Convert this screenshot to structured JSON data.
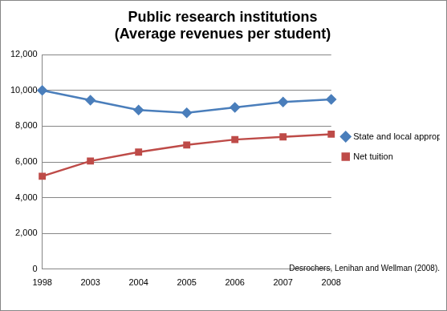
{
  "chart_data": {
    "type": "line",
    "title": "Public research institutions",
    "subtitle": "(Average revenues per student)",
    "annotations": [
      "Desrochers, Lenihan and Wellman (2008)."
    ],
    "categories": [
      "1998",
      "2003",
      "2004",
      "2005",
      "2006",
      "2007",
      "2008"
    ],
    "series": [
      {
        "name": "State and local appropriations",
        "color": "#4a7ebb",
        "marker": "diamond",
        "values": [
          10000,
          9450,
          8900,
          8750,
          9050,
          9350,
          9500
        ]
      },
      {
        "name": "Net tuition",
        "color": "#be4b48",
        "marker": "square",
        "values": [
          5200,
          6050,
          6550,
          6950,
          7250,
          7400,
          7550
        ]
      }
    ],
    "ylim": [
      0,
      12000
    ],
    "yticks": [
      0,
      {
        "value": 2000,
        "label": "2,000"
      },
      {
        "value": 4000,
        "label": "4,000"
      },
      {
        "value": 6000,
        "label": "6,000"
      },
      {
        "value": 8000,
        "label": "8,000"
      },
      {
        "value": 10000,
        "label": "10,000"
      },
      {
        "value": 12000,
        "label": "12,000"
      }
    ],
    "grid": true,
    "legend": "right"
  }
}
